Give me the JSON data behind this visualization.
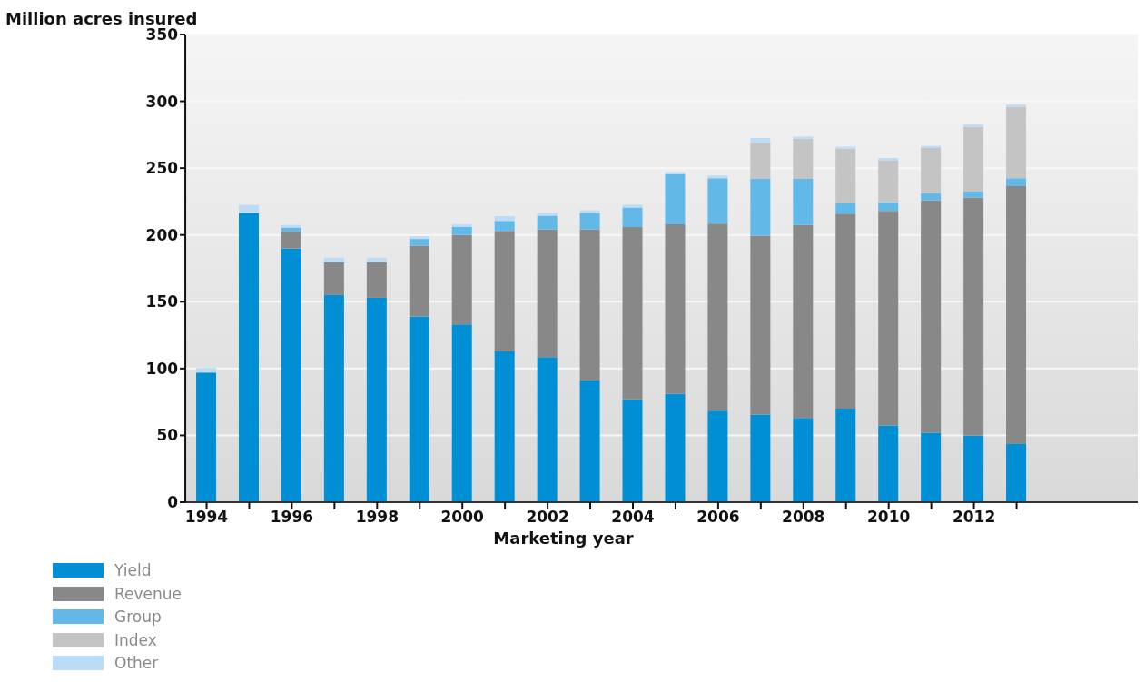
{
  "chart_data": {
    "type": "bar",
    "stacked": true,
    "ylabel": "Million acres insured",
    "xlabel": "Marketing year",
    "categories": [
      "1994",
      null,
      "1996",
      null,
      "1998",
      null,
      "2000",
      null,
      "2002",
      null,
      "2004",
      null,
      "2006",
      null,
      "2008",
      null,
      "2010",
      null,
      "2012",
      null
    ],
    "series": [
      {
        "name": "Yield",
        "color": "#008fd5",
        "values": [
          97,
          216.5,
          190,
          155,
          153,
          139,
          133,
          113,
          108.5,
          91,
          77,
          81,
          68.5,
          65.5,
          63,
          70,
          57.5,
          52,
          50,
          43.5
        ]
      },
      {
        "name": "Revenue",
        "color": "#888888",
        "values": [
          null,
          null,
          12.5,
          24.5,
          26.5,
          53,
          67,
          90,
          95.5,
          113,
          129,
          127,
          140,
          134,
          144.5,
          146,
          160.5,
          174,
          178,
          193
        ]
      },
      {
        "name": "Group",
        "color": "#62b8e6",
        "values": [
          null,
          null,
          3,
          null,
          null,
          5,
          6,
          7.5,
          10.5,
          12.5,
          14.5,
          37.5,
          34,
          42.5,
          34.5,
          8,
          6.5,
          5,
          4.5,
          6
        ]
      },
      {
        "name": "Index",
        "color": "#c4c4c4",
        "values": [
          null,
          null,
          null,
          null,
          null,
          null,
          null,
          null,
          null,
          null,
          null,
          null,
          null,
          27,
          30,
          40.5,
          31,
          34,
          48.5,
          53.5
        ]
      },
      {
        "name": "Other",
        "color": "#bcdcf5",
        "values": [
          3.5,
          6,
          2,
          3.5,
          3.5,
          2,
          2,
          3.5,
          2,
          2,
          2,
          1.5,
          2,
          3.5,
          1.5,
          1.5,
          2,
          1.5,
          1.5,
          1.5
        ]
      }
    ],
    "ylim": [
      0,
      350
    ],
    "yticks": [
      0,
      50,
      100,
      150,
      200,
      250,
      300,
      350
    ],
    "grid": "y",
    "legend": "bottom left"
  }
}
